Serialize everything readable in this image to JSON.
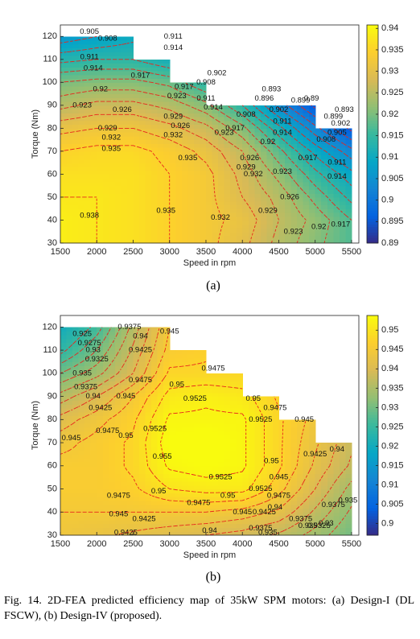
{
  "chart_data": [
    {
      "type": "contour",
      "label": "(a)",
      "xlabel": "Speed in rpm",
      "ylabel": "Torque (Nm)",
      "colormap": "parula",
      "line_color": "#e8251c",
      "x": [
        1500,
        2000,
        2500,
        3000,
        3500,
        4000,
        4500,
        5000,
        5500
      ],
      "y": [
        30,
        40,
        50,
        60,
        70,
        80,
        90,
        100,
        110,
        120
      ],
      "z": [
        [
          0.939,
          0.938,
          0.937,
          0.935,
          0.933,
          0.93,
          0.925,
          0.921,
          0.917
        ],
        [
          0.939,
          0.938,
          0.937,
          0.935,
          0.933,
          0.931,
          0.926,
          0.922,
          0.917
        ],
        [
          0.938,
          0.938,
          0.937,
          0.935,
          0.933,
          0.929,
          0.925,
          0.919,
          0.913
        ],
        [
          0.937,
          0.937,
          0.937,
          0.935,
          0.933,
          0.928,
          0.922,
          0.915,
          0.909
        ],
        [
          0.935,
          0.936,
          0.936,
          0.934,
          0.931,
          0.926,
          0.918,
          0.91,
          0.903
        ],
        [
          0.931,
          0.932,
          0.932,
          0.93,
          0.927,
          0.921,
          0.912,
          0.903,
          0.895
        ],
        [
          0.925,
          0.927,
          0.927,
          0.925,
          0.921,
          0.914,
          0.904,
          0.895,
          null
        ],
        [
          0.92,
          0.921,
          0.921,
          0.919,
          0.914,
          null,
          null,
          null,
          null
        ],
        [
          0.913,
          0.914,
          0.914,
          0.911,
          null,
          null,
          null,
          null,
          null
        ],
        [
          0.906,
          0.908,
          0.91,
          null,
          null,
          null,
          null,
          null,
          null
        ]
      ],
      "xlim": [
        1500,
        5600
      ],
      "ylim": [
        30,
        125
      ],
      "xticks": [
        1500,
        2000,
        2500,
        3000,
        3500,
        4000,
        4500,
        5000,
        5500
      ],
      "yticks": [
        30,
        40,
        50,
        60,
        70,
        80,
        90,
        100,
        110,
        120
      ],
      "clim": [
        0.89,
        0.9408
      ],
      "cticks": [
        0.89,
        0.895,
        0.9,
        0.905,
        0.91,
        0.915,
        0.92,
        0.925,
        0.93,
        0.935,
        0.94
      ],
      "levels": [
        0.89,
        0.893,
        0.896,
        0.899,
        0.902,
        0.905,
        0.908,
        0.911,
        0.914,
        0.917,
        0.92,
        0.923,
        0.926,
        0.929,
        0.932,
        0.935,
        0.938
      ],
      "contour_labels": [
        {
          "x": 1900,
          "y": 122,
          "value": 0.905
        },
        {
          "x": 2150,
          "y": 119,
          "value": 0.908
        },
        {
          "x": 1900,
          "y": 111,
          "value": 0.911
        },
        {
          "x": 1950,
          "y": 106,
          "value": 0.914
        },
        {
          "x": 2600,
          "y": 103,
          "value": 0.917
        },
        {
          "x": 2050,
          "y": 97,
          "value": 0.92
        },
        {
          "x": 1800,
          "y": 90,
          "value": 0.923
        },
        {
          "x": 2350,
          "y": 88,
          "value": 0.926
        },
        {
          "x": 2150,
          "y": 80,
          "value": 0.929
        },
        {
          "x": 2200,
          "y": 76,
          "value": 0.932
        },
        {
          "x": 2200,
          "y": 71,
          "value": 0.935
        },
        {
          "x": 1900,
          "y": 42,
          "value": 0.938
        },
        {
          "x": 2950,
          "y": 44,
          "value": 0.935
        },
        {
          "x": 3700,
          "y": 41,
          "value": 0.932
        },
        {
          "x": 4350,
          "y": 44,
          "value": 0.929
        },
        {
          "x": 4650,
          "y": 50,
          "value": 0.926
        },
        {
          "x": 4700,
          "y": 35,
          "value": 0.923
        },
        {
          "x": 5050,
          "y": 37,
          "value": 0.92
        },
        {
          "x": 5350,
          "y": 38,
          "value": 0.917
        },
        {
          "x": 3050,
          "y": 120,
          "value": 0.911
        },
        {
          "x": 3050,
          "y": 115,
          "value": 0.914
        },
        {
          "x": 3200,
          "y": 98,
          "value": 0.917
        },
        {
          "x": 3100,
          "y": 94,
          "value": 0.923
        },
        {
          "x": 3050,
          "y": 85,
          "value": 0.929
        },
        {
          "x": 3150,
          "y": 81,
          "value": 0.926
        },
        {
          "x": 3050,
          "y": 77,
          "value": 0.932
        },
        {
          "x": 3250,
          "y": 67,
          "value": 0.935
        },
        {
          "x": 3500,
          "y": 93,
          "value": 0.911
        },
        {
          "x": 3600,
          "y": 89,
          "value": 0.914
        },
        {
          "x": 3650,
          "y": 104,
          "value": 0.902
        },
        {
          "x": 3500,
          "y": 100,
          "value": 0.908
        },
        {
          "x": 3900,
          "y": 80,
          "value": 0.917
        },
        {
          "x": 3750,
          "y": 78,
          "value": 0.923
        },
        {
          "x": 4100,
          "y": 67,
          "value": 0.926
        },
        {
          "x": 4050,
          "y": 63,
          "value": 0.929
        },
        {
          "x": 4150,
          "y": 60,
          "value": 0.932
        },
        {
          "x": 4550,
          "y": 61,
          "value": 0.923
        },
        {
          "x": 4350,
          "y": 74,
          "value": 0.92
        },
        {
          "x": 4550,
          "y": 78,
          "value": 0.914
        },
        {
          "x": 4550,
          "y": 83,
          "value": 0.911
        },
        {
          "x": 4500,
          "y": 88,
          "value": 0.902
        },
        {
          "x": 4800,
          "y": 92,
          "value": 0.899
        },
        {
          "x": 4900,
          "y": 67,
          "value": 0.917
        },
        {
          "x": 5300,
          "y": 65,
          "value": 0.911
        },
        {
          "x": 5300,
          "y": 59,
          "value": 0.914
        },
        {
          "x": 5150,
          "y": 75,
          "value": 0.908
        },
        {
          "x": 5300,
          "y": 78,
          "value": 0.905
        },
        {
          "x": 5350,
          "y": 82,
          "value": 0.902
        },
        {
          "x": 5250,
          "y": 85,
          "value": 0.899
        },
        {
          "x": 5400,
          "y": 88,
          "value": 0.893
        },
        {
          "x": 4300,
          "y": 93,
          "value": 0.896
        },
        {
          "x": 4950,
          "y": 93,
          "value": 0.89
        },
        {
          "x": 4400,
          "y": 97,
          "value": 0.893
        },
        {
          "x": 4050,
          "y": 86,
          "value": 0.908
        }
      ]
    },
    {
      "type": "contour",
      "label": "(b)",
      "xlabel": "Speed in rpm",
      "ylabel": "Torque (Nm)",
      "colormap": "parula",
      "line_color": "#e8251c",
      "x": [
        1500,
        2000,
        2500,
        3000,
        3500,
        4000,
        4500,
        5000,
        5500
      ],
      "y": [
        30,
        40,
        50,
        60,
        70,
        80,
        90,
        100,
        110,
        120
      ],
      "z": [
        [
          0.944,
          0.943,
          0.942,
          0.941,
          0.94,
          0.939,
          0.937,
          0.934,
          0.93
        ],
        [
          0.945,
          0.945,
          0.945,
          0.945,
          0.945,
          0.944,
          0.942,
          0.937,
          0.932
        ],
        [
          0.946,
          0.946,
          0.947,
          0.95,
          0.951,
          0.951,
          0.946,
          0.94,
          0.934
        ],
        [
          0.946,
          0.946,
          0.948,
          0.953,
          0.954,
          0.953,
          0.948,
          0.942,
          0.937
        ],
        [
          0.944,
          0.946,
          0.948,
          0.954,
          0.955,
          0.953,
          0.948,
          0.943,
          0.938
        ],
        [
          0.941,
          0.944,
          0.947,
          0.953,
          0.953,
          0.953,
          0.948,
          0.944,
          null
        ],
        [
          0.936,
          0.94,
          0.945,
          0.951,
          0.952,
          0.951,
          0.947,
          null,
          null
        ],
        [
          0.93,
          0.934,
          0.94,
          0.948,
          0.948,
          0.948,
          null,
          null,
          null
        ],
        [
          0.924,
          0.93,
          0.938,
          0.946,
          0.947,
          null,
          null,
          null,
          null
        ],
        [
          0.92,
          0.926,
          0.936,
          0.945,
          null,
          null,
          null,
          null,
          null
        ]
      ],
      "xlim": [
        1500,
        5600
      ],
      "ylim": [
        30,
        125
      ],
      "xticks": [
        1500,
        2000,
        2500,
        3000,
        3500,
        4000,
        4500,
        5000,
        5500
      ],
      "yticks": [
        30,
        40,
        50,
        60,
        70,
        80,
        90,
        100,
        110,
        120
      ],
      "clim": [
        0.897,
        0.9538
      ],
      "cticks": [
        0.9,
        0.905,
        0.91,
        0.915,
        0.92,
        0.925,
        0.93,
        0.935,
        0.94,
        0.945,
        0.95
      ],
      "levels": [
        0.925,
        0.9275,
        0.93,
        0.9325,
        0.935,
        0.9375,
        0.94,
        0.9425,
        0.945,
        0.9475,
        0.95,
        0.9525,
        0.955
      ],
      "contour_labels": [
        {
          "x": 1800,
          "y": 117,
          "value": 0.925
        },
        {
          "x": 1900,
          "y": 113,
          "value": 0.9275
        },
        {
          "x": 1950,
          "y": 110,
          "value": 0.93
        },
        {
          "x": 2000,
          "y": 106,
          "value": 0.9325
        },
        {
          "x": 1800,
          "y": 100,
          "value": 0.935
        },
        {
          "x": 1850,
          "y": 94,
          "value": 0.9375
        },
        {
          "x": 1950,
          "y": 90,
          "value": 0.94
        },
        {
          "x": 2050,
          "y": 85,
          "value": 0.9425
        },
        {
          "x": 1650,
          "y": 72,
          "value": 0.945
        },
        {
          "x": 2150,
          "y": 75,
          "value": 0.9475
        },
        {
          "x": 2400,
          "y": 90,
          "value": 0.945
        },
        {
          "x": 2600,
          "y": 97,
          "value": 0.9475
        },
        {
          "x": 2400,
          "y": 73,
          "value": 0.95
        },
        {
          "x": 2800,
          "y": 76,
          "value": 0.9525
        },
        {
          "x": 2900,
          "y": 64,
          "value": 0.955
        },
        {
          "x": 3100,
          "y": 95,
          "value": 0.95
        },
        {
          "x": 3600,
          "y": 102,
          "value": 0.9475
        },
        {
          "x": 3000,
          "y": 118,
          "value": 0.945
        },
        {
          "x": 2450,
          "y": 120,
          "value": 0.9375
        },
        {
          "x": 2600,
          "y": 116,
          "value": 0.94
        },
        {
          "x": 2600,
          "y": 110,
          "value": 0.9425
        },
        {
          "x": 3350,
          "y": 89,
          "value": 0.9525
        },
        {
          "x": 4150,
          "y": 89,
          "value": 0.95
        },
        {
          "x": 4250,
          "y": 80,
          "value": 0.9525
        },
        {
          "x": 4450,
          "y": 85,
          "value": 0.9475
        },
        {
          "x": 4850,
          "y": 80,
          "value": 0.945
        },
        {
          "x": 4400,
          "y": 62,
          "value": 0.95
        },
        {
          "x": 3700,
          "y": 55,
          "value": 0.9525
        },
        {
          "x": 4250,
          "y": 50,
          "value": 0.9525
        },
        {
          "x": 2850,
          "y": 49,
          "value": 0.95
        },
        {
          "x": 2300,
          "y": 47,
          "value": 0.9475
        },
        {
          "x": 3800,
          "y": 47,
          "value": 0.95
        },
        {
          "x": 3400,
          "y": 44,
          "value": 0.9475
        },
        {
          "x": 4000,
          "y": 40,
          "value": 0.945
        },
        {
          "x": 4500,
          "y": 47,
          "value": 0.9475
        },
        {
          "x": 4500,
          "y": 55,
          "value": 0.945
        },
        {
          "x": 2650,
          "y": 37,
          "value": 0.9425
        },
        {
          "x": 2300,
          "y": 39,
          "value": 0.945
        },
        {
          "x": 3550,
          "y": 32,
          "value": 0.94
        },
        {
          "x": 4300,
          "y": 40,
          "value": 0.9425
        },
        {
          "x": 4450,
          "y": 42,
          "value": 0.94
        },
        {
          "x": 4800,
          "y": 37,
          "value": 0.9375
        },
        {
          "x": 4900,
          "y": 34,
          "value": 0.935
        },
        {
          "x": 5050,
          "y": 34,
          "value": 0.9325
        },
        {
          "x": 5150,
          "y": 35,
          "value": 0.93
        },
        {
          "x": 5250,
          "y": 43,
          "value": 0.9375
        },
        {
          "x": 5450,
          "y": 45,
          "value": 0.935
        },
        {
          "x": 5000,
          "y": 65,
          "value": 0.9425
        },
        {
          "x": 5300,
          "y": 67,
          "value": 0.94
        },
        {
          "x": 4250,
          "y": 33,
          "value": 0.9375
        },
        {
          "x": 4350,
          "y": 31,
          "value": 0.935
        },
        {
          "x": 2400,
          "y": 31,
          "value": 0.9425
        }
      ]
    }
  ],
  "caption": "Fig. 14.  2D-FEA predicted efficiency map of 35kW SPM motors: (a) Design-I (DL FSCW), (b) Design-IV (proposed)."
}
